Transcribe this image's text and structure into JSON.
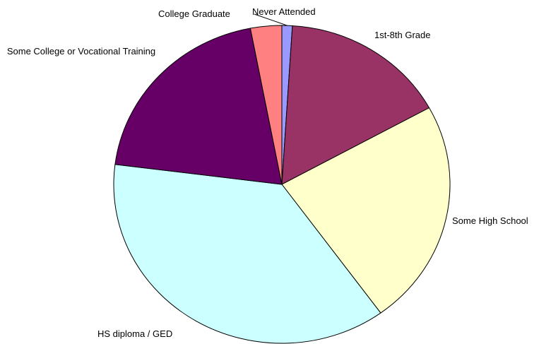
{
  "chart_data": {
    "type": "pie",
    "categories": [
      "Never Attended",
      "1st-8th Grade",
      "Some High School",
      "HS diploma / GED",
      "Some College or Vocational Training",
      "College Graduate"
    ],
    "values": [
      1,
      16,
      23,
      37,
      20,
      3
    ],
    "colors": [
      "#9999ff",
      "#993366",
      "#ffffcc",
      "#ccffff",
      "#660066",
      "#ff8080"
    ]
  }
}
